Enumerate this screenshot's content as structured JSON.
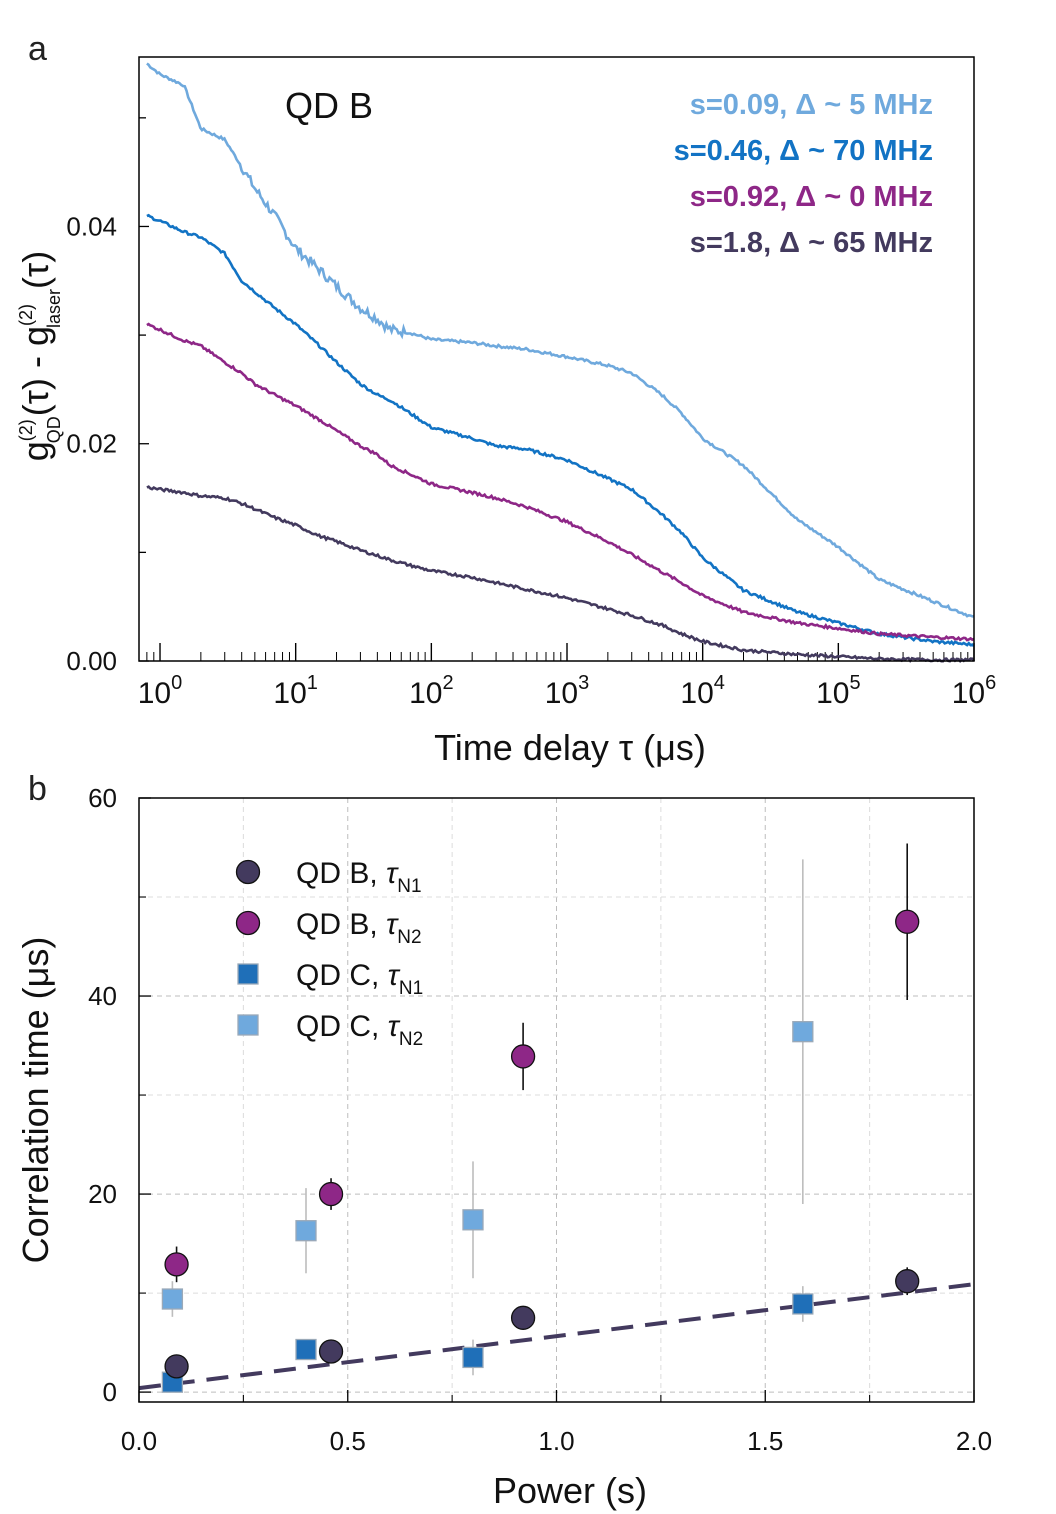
{
  "panel_a": {
    "panel_label": "a",
    "annotation": "QD B",
    "legend": [
      {
        "text": "s=0.09,  Δ ~   5 MHz",
        "color": "#6fa9dd"
      },
      {
        "text": "s=0.46,  Δ ~ 70 MHz",
        "color": "#1273c4"
      },
      {
        "text": "s=0.92,  Δ ~   0 MHz",
        "color": "#8e2787"
      },
      {
        "text": "s=1.8,    Δ ~ 65 MHz",
        "color": "#433a5e"
      }
    ],
    "ylabel": {
      "g1": "g",
      "sup1": "(2)",
      "sub1": "QD",
      "mid1": "(τ) - g",
      "sup2": "(2)",
      "sub2": "laser",
      "end": "(τ)"
    },
    "xlabel": "Time delay τ (μs)",
    "y_tick_labels": [
      "0.00",
      "0.02",
      "0.04"
    ],
    "x_tick_labels": [
      {
        "base": "10",
        "exp": "0"
      },
      {
        "base": "10",
        "exp": "1"
      },
      {
        "base": "10",
        "exp": "2"
      },
      {
        "base": "10",
        "exp": "3"
      },
      {
        "base": "10",
        "exp": "4"
      },
      {
        "base": "10",
        "exp": "5"
      },
      {
        "base": "10",
        "exp": "6"
      }
    ]
  },
  "panel_b": {
    "panel_label": "b",
    "xlabel": "Power (s)",
    "ylabel": "Correlation time (μs)",
    "x_tick_labels": [
      "0.0",
      "0.5",
      "1.0",
      "1.5",
      "2.0"
    ],
    "y_tick_labels": [
      "0",
      "20",
      "40",
      "60"
    ],
    "legend": [
      {
        "prefix": "QD B, ",
        "tau": "τ",
        "sub": "N1",
        "marker": "circle",
        "color": "#433a5e"
      },
      {
        "prefix": "QD B, ",
        "tau": "τ",
        "sub": "N2",
        "marker": "circle",
        "color": "#8e2787"
      },
      {
        "prefix": "QD C, ",
        "tau": "τ",
        "sub": "N1",
        "marker": "square",
        "color": "#1f6fb8"
      },
      {
        "prefix": "QD C, ",
        "tau": "τ",
        "sub": "N2",
        "marker": "square",
        "color": "#6fa9dd"
      }
    ]
  },
  "chart_data": [
    {
      "type": "line",
      "x_scale": "log",
      "xlim": [
        0.7,
        1000000
      ],
      "ylim": [
        0,
        0.0556
      ],
      "xlabel": "Time delay τ (μs)",
      "ylabel": "g(2)QD(τ) - g(2)laser(τ)",
      "series": [
        {
          "name": "s=0.09, Δ ~ 5 MHz",
          "color": "#6fa9dd",
          "x": [
            0.8,
            1,
            1.5,
            2,
            3,
            4,
            5,
            7,
            10,
            15,
            20,
            30,
            40,
            50,
            70,
            100,
            200,
            300,
            500,
            1000,
            2000,
            3000,
            5000,
            7000,
            10000,
            20000,
            50000,
            100000,
            200000,
            500000,
            1000000
          ],
          "y": [
            0.055,
            0.054,
            0.053,
            0.049,
            0.048,
            0.0455,
            0.0435,
            0.041,
            0.038,
            0.036,
            0.0345,
            0.0325,
            0.0315,
            0.0305,
            0.0302,
            0.0296,
            0.0293,
            0.029,
            0.0287,
            0.028,
            0.0272,
            0.0265,
            0.0245,
            0.0228,
            0.0205,
            0.018,
            0.013,
            0.0105,
            0.0075,
            0.0055,
            0.004
          ]
        },
        {
          "name": "s=0.46, Δ ~ 70 MHz",
          "color": "#1273c4",
          "x": [
            0.8,
            1,
            1.5,
            2,
            3,
            4,
            5,
            7,
            10,
            15,
            20,
            30,
            40,
            50,
            70,
            100,
            200,
            300,
            500,
            1000,
            2000,
            3000,
            5000,
            7000,
            10000,
            20000,
            50000,
            100000,
            200000,
            500000,
            1000000
          ],
          "y": [
            0.041,
            0.0405,
            0.0395,
            0.039,
            0.0375,
            0.035,
            0.034,
            0.0325,
            0.031,
            0.029,
            0.0275,
            0.0255,
            0.0245,
            0.024,
            0.0228,
            0.0215,
            0.0205,
            0.0198,
            0.0195,
            0.0185,
            0.0168,
            0.0158,
            0.0135,
            0.0118,
            0.0095,
            0.0065,
            0.0045,
            0.0035,
            0.0025,
            0.0018,
            0.0015
          ]
        },
        {
          "name": "s=0.92, Δ ~ 0 MHz",
          "color": "#8e2787",
          "x": [
            0.8,
            1,
            1.5,
            2,
            3,
            4,
            5,
            7,
            10,
            15,
            20,
            30,
            40,
            50,
            70,
            100,
            200,
            300,
            500,
            1000,
            2000,
            3000,
            5000,
            7000,
            10000,
            20000,
            50000,
            100000,
            200000,
            500000,
            1000000
          ],
          "y": [
            0.031,
            0.0305,
            0.0295,
            0.029,
            0.0275,
            0.0265,
            0.0255,
            0.0245,
            0.0235,
            0.0222,
            0.0212,
            0.0198,
            0.019,
            0.018,
            0.0172,
            0.0163,
            0.0155,
            0.015,
            0.0142,
            0.0128,
            0.011,
            0.0098,
            0.0082,
            0.0072,
            0.006,
            0.0045,
            0.0035,
            0.003,
            0.0025,
            0.0022,
            0.002
          ]
        },
        {
          "name": "s=1.8, Δ ~ 65 MHz",
          "color": "#433a5e",
          "x": [
            0.8,
            1,
            1.5,
            2,
            3,
            4,
            5,
            7,
            10,
            15,
            20,
            30,
            40,
            50,
            70,
            100,
            200,
            300,
            500,
            1000,
            2000,
            3000,
            5000,
            7000,
            10000,
            20000,
            50000,
            100000,
            200000,
            500000,
            1000000
          ],
          "y": [
            0.016,
            0.0158,
            0.0155,
            0.0152,
            0.015,
            0.0145,
            0.014,
            0.0132,
            0.0125,
            0.0115,
            0.011,
            0.0102,
            0.0097,
            0.0093,
            0.0088,
            0.0083,
            0.0077,
            0.0072,
            0.0066,
            0.0058,
            0.0048,
            0.0042,
            0.0033,
            0.0025,
            0.0018,
            0.001,
            0.0006,
            0.0004,
            0.0002,
            0.0001,
            0.0001
          ]
        }
      ]
    },
    {
      "type": "scatter",
      "xlim": [
        0,
        2
      ],
      "ylim": [
        -1,
        60
      ],
      "grid": true,
      "legend_position": "top-left",
      "xlabel": "Power (s)",
      "ylabel": "Correlation time (μs)",
      "series": [
        {
          "name": "QD B, τN1",
          "marker": "circle",
          "color": "#433a5e",
          "points": [
            {
              "x": 0.09,
              "y": 2.6,
              "err": 0.8
            },
            {
              "x": 0.46,
              "y": 4.1,
              "err": 0.7
            },
            {
              "x": 0.92,
              "y": 7.5,
              "err": 0.9
            },
            {
              "x": 1.84,
              "y": 11.2,
              "err": 1.4
            }
          ]
        },
        {
          "name": "QD B, τN2",
          "marker": "circle",
          "color": "#8e2787",
          "points": [
            {
              "x": 0.09,
              "y": 12.9,
              "err": 1.8
            },
            {
              "x": 0.46,
              "y": 20.0,
              "err": 1.6
            },
            {
              "x": 0.92,
              "y": 33.9,
              "err": 3.4
            },
            {
              "x": 1.84,
              "y": 47.5,
              "err": 7.9
            }
          ]
        },
        {
          "name": "QD C, τN1",
          "marker": "square",
          "color": "#1f6fb8",
          "points": [
            {
              "x": 0.08,
              "y": 1.0,
              "err": 0.5
            },
            {
              "x": 0.4,
              "y": 4.3,
              "err": 0.6
            },
            {
              "x": 0.8,
              "y": 3.5,
              "err": 1.8
            },
            {
              "x": 1.59,
              "y": 8.9,
              "err": 1.8
            }
          ]
        },
        {
          "name": "QD C, τN2",
          "marker": "square",
          "color": "#6fa9dd",
          "points": [
            {
              "x": 0.08,
              "y": 9.4,
              "err": 1.8
            },
            {
              "x": 0.4,
              "y": 16.3,
              "err": 4.3
            },
            {
              "x": 0.8,
              "y": 17.4,
              "err": 5.9
            },
            {
              "x": 1.59,
              "y": 36.4,
              "err": 17.4
            }
          ]
        }
      ],
      "fit_line": {
        "style": "dashed",
        "color": "#433a5e",
        "x": [
          0,
          2
        ],
        "y": [
          0.4,
          10.9
        ]
      }
    }
  ]
}
